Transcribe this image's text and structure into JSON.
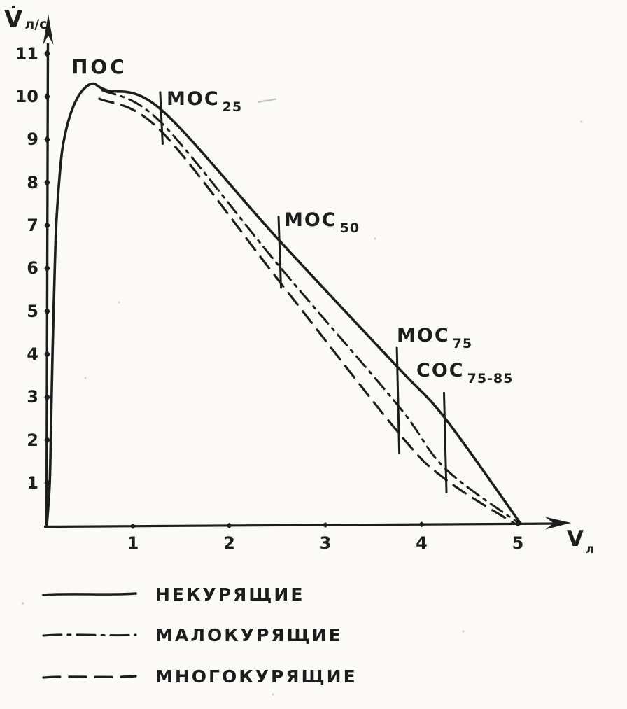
{
  "figure": {
    "y_axis_title": {
      "main": "V̇",
      "unit": "л/с"
    },
    "x_axis_title": {
      "main": "V",
      "sub": "л"
    }
  },
  "chart_data": {
    "type": "line",
    "title": "",
    "xlabel": "V, л",
    "ylabel": "V̇, л/с",
    "xlim": [
      0,
      5.5
    ],
    "ylim": [
      0,
      11.8
    ],
    "x_ticks": [
      1,
      2,
      3,
      4,
      5
    ],
    "y_ticks": [
      1,
      2,
      3,
      4,
      5,
      6,
      7,
      8,
      9,
      10,
      11
    ],
    "grid": false,
    "legend_position": "bottom-left",
    "series": [
      {
        "name": "НЕКУРЯЩИЕ",
        "style": "solid",
        "points": [
          [
            0.105,
            0.01
          ],
          [
            0.135,
            1.0
          ],
          [
            0.15,
            2.47
          ],
          [
            0.165,
            4.1
          ],
          [
            0.18,
            5.4
          ],
          [
            0.2,
            6.87
          ],
          [
            0.23,
            7.93
          ],
          [
            0.265,
            8.75
          ],
          [
            0.325,
            9.4
          ],
          [
            0.4,
            9.87
          ],
          [
            0.49,
            10.18
          ],
          [
            0.59,
            10.3
          ],
          [
            0.72,
            10.15
          ],
          [
            1.29,
            9.7
          ],
          [
            2.52,
            6.65
          ],
          [
            3.75,
            3.7
          ],
          [
            4.24,
            2.52
          ],
          [
            5.03,
            0.05
          ]
        ]
      },
      {
        "name": "МАЛОКУРЯЩИЕ",
        "style": "dash-dot",
        "points": [
          [
            0.68,
            10.15
          ],
          [
            1.29,
            9.4
          ],
          [
            2.52,
            6.05
          ],
          [
            3.75,
            2.82
          ],
          [
            4.24,
            1.35
          ],
          [
            5.0,
            0.08
          ]
        ]
      },
      {
        "name": "МНОГОКУРЯЩИЕ",
        "style": "dashed",
        "points": [
          [
            0.65,
            9.95
          ],
          [
            1.29,
            9.2
          ],
          [
            2.52,
            5.7
          ],
          [
            3.75,
            2.2
          ],
          [
            4.24,
            1.1
          ],
          [
            4.97,
            0.05
          ]
        ]
      }
    ],
    "annotations": [
      {
        "label": "ПОС",
        "x": 0.59,
        "y": 10.3
      },
      {
        "label": "МОС",
        "sub": "25",
        "x": 1.29,
        "marker_y": [
          8.9,
          10.1
        ]
      },
      {
        "label": "МОС",
        "sub": "50",
        "x": 2.52,
        "marker_y": [
          5.55,
          7.2
        ]
      },
      {
        "label": "МОС",
        "sub": "75",
        "x": 3.75,
        "marker_y": [
          1.7,
          4.15
        ]
      },
      {
        "label": "СОС",
        "sub": "75-85",
        "x": 4.24,
        "marker_y": [
          0.78,
          3.1
        ]
      }
    ]
  },
  "legend": {
    "items": [
      {
        "label": "НЕКУРЯЩИЕ",
        "style": "solid"
      },
      {
        "label": "МАЛОКУРЯЩИЕ",
        "style": "dash-dot"
      },
      {
        "label": "МНОГОКУРЯЩИЕ",
        "style": "dashed"
      }
    ]
  },
  "ink_color": "#1d1d1d",
  "paper_color": "#fbfaf6"
}
